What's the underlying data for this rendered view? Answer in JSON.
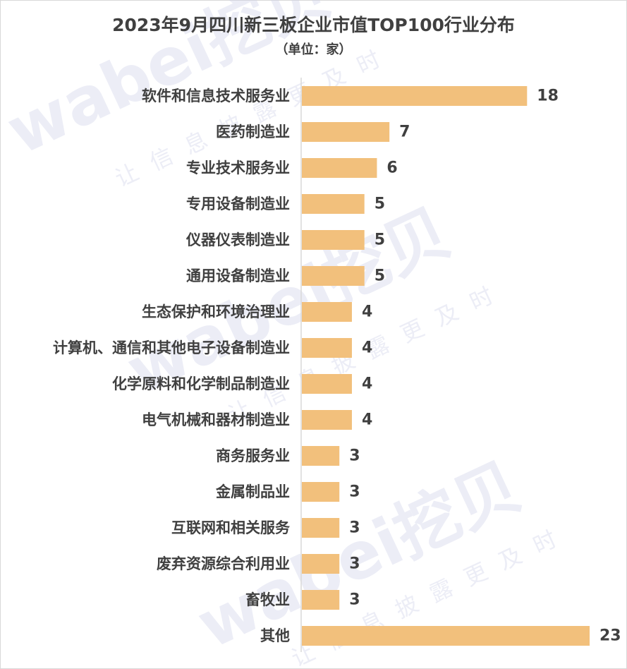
{
  "chart_data": {
    "type": "bar",
    "orientation": "horizontal",
    "title": "2023年9月四川新三板企业市值TOP100行业分布",
    "subtitle": "（单位：家）",
    "categories": [
      "软件和信息技术服务业",
      "医药制造业",
      "专业技术服务业",
      "专用设备制造业",
      "仪器仪表制造业",
      "通用设备制造业",
      "生态保护和环境治理业",
      "计算机、通信和其他电子设备制造业",
      "化学原料和化学制品制造业",
      "电气机械和器材制造业",
      "商务服务业",
      "金属制品业",
      "互联网和相关服务",
      "废弃资源综合利用业",
      "畜牧业",
      "其他"
    ],
    "values": [
      18,
      7,
      6,
      5,
      5,
      5,
      4,
      4,
      4,
      4,
      3,
      3,
      3,
      3,
      3,
      23
    ],
    "xlim": [
      0,
      23
    ],
    "bar_color": "#f2c07c",
    "grid": false,
    "legend": "none"
  },
  "watermark": {
    "brand": "wabei挖贝",
    "slogan": "让信息披露更及时",
    "color": "#c9cde6"
  }
}
